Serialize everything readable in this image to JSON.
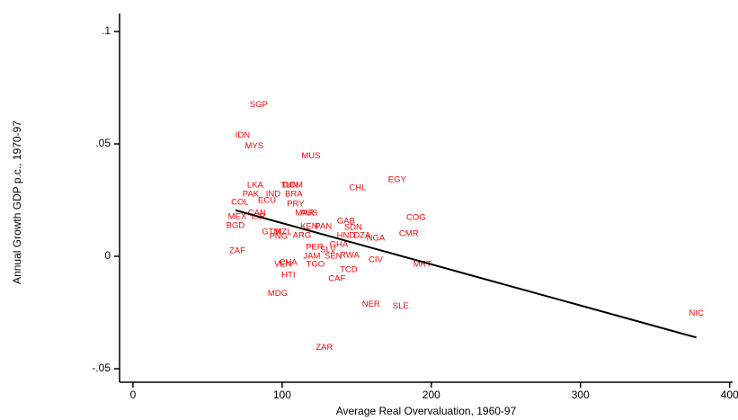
{
  "chart_data": {
    "type": "scatter",
    "x_label": "Average Real Overvaluation, 1960-97",
    "y_label": "Annual Growth GDP p.c., 1970-97",
    "color": "#ff0000",
    "labels": [
      "SGP",
      "IDN",
      "MYS",
      "MUS",
      "EGY",
      "CHL",
      "LKA",
      "TUN",
      "DOM",
      "PAK",
      "IND",
      "BRA",
      "ECU",
      "COL",
      "PRY",
      "CAN",
      "MEX",
      "ISR",
      "MAR",
      "AUS",
      "GAB",
      "COG",
      "BGD",
      "KEN",
      "PAN",
      "SDN",
      "CMR",
      "GTM",
      "NZL",
      "PNG",
      "ARG",
      "HND",
      "DZA",
      "NGA",
      "PER",
      "GHA",
      "ZAF",
      "SLV",
      "JAM",
      "SEN",
      "RWA",
      "CIV",
      "MRT",
      "CHA",
      "VEN",
      "TGO",
      "TCD",
      "HTI",
      "CAF",
      "MDG",
      "NER",
      "SLE",
      "NIC",
      "ZAR"
    ],
    "x": [
      84.3,
      73.5,
      81.3,
      119.3,
      177.1,
      150.6,
      81.9,
      104.8,
      107.2,
      78.9,
      94.0,
      107.8,
      89.8,
      71.7,
      109.0,
      83.1,
      69.9,
      84.0,
      115.1,
      118.0,
      142.8,
      189.8,
      68.7,
      118.1,
      127.7,
      147.6,
      184.9,
      92.8,
      101.0,
      97.6,
      113.3,
      142.8,
      153.6,
      162.7,
      121.7,
      138.0,
      69.9,
      130.7,
      119.9,
      134.3,
      145.2,
      162.7,
      194.0,
      104.0,
      100.6,
      122.3,
      144.6,
      104.2,
      136.7,
      97.0,
      159.6,
      179.5,
      377.7,
      128.3
    ],
    "values": [
      0.0675,
      0.0538,
      0.049,
      0.0446,
      0.0341,
      0.0305,
      0.0317,
      0.0317,
      0.0317,
      0.0277,
      0.0277,
      0.0277,
      0.0249,
      0.0241,
      0.0233,
      0.0193,
      0.0177,
      0.0177,
      0.0193,
      0.0193,
      0.0157,
      0.0173,
      0.0137,
      0.0133,
      0.0133,
      0.0129,
      0.01,
      0.0108,
      0.0108,
      0.0088,
      0.0092,
      0.0092,
      0.0092,
      0.008,
      0.004,
      0.0052,
      0.0024,
      0.0028,
      0,
      0,
      0.0004,
      -0.0016,
      -0.0036,
      -0.0028,
      -0.0036,
      -0.0036,
      -0.006,
      -0.0084,
      -0.01,
      -0.0165,
      -0.0213,
      -0.0221,
      -0.0253,
      -0.0406
    ],
    "fit": {
      "x": [
        68.7,
        377.7
      ],
      "values": [
        0.0205,
        -0.0361
      ]
    },
    "xlim": [
      -9,
      402
    ],
    "ylim": [
      -0.056,
      0.108
    ],
    "xticks": [
      0,
      100,
      200,
      300,
      400
    ],
    "yticks": [
      {
        "value": -0.05,
        "label": "-.05"
      },
      0,
      {
        "value": 0.05,
        "label": ".05"
      },
      {
        "value": 0.1,
        "label": ".1"
      }
    ]
  }
}
